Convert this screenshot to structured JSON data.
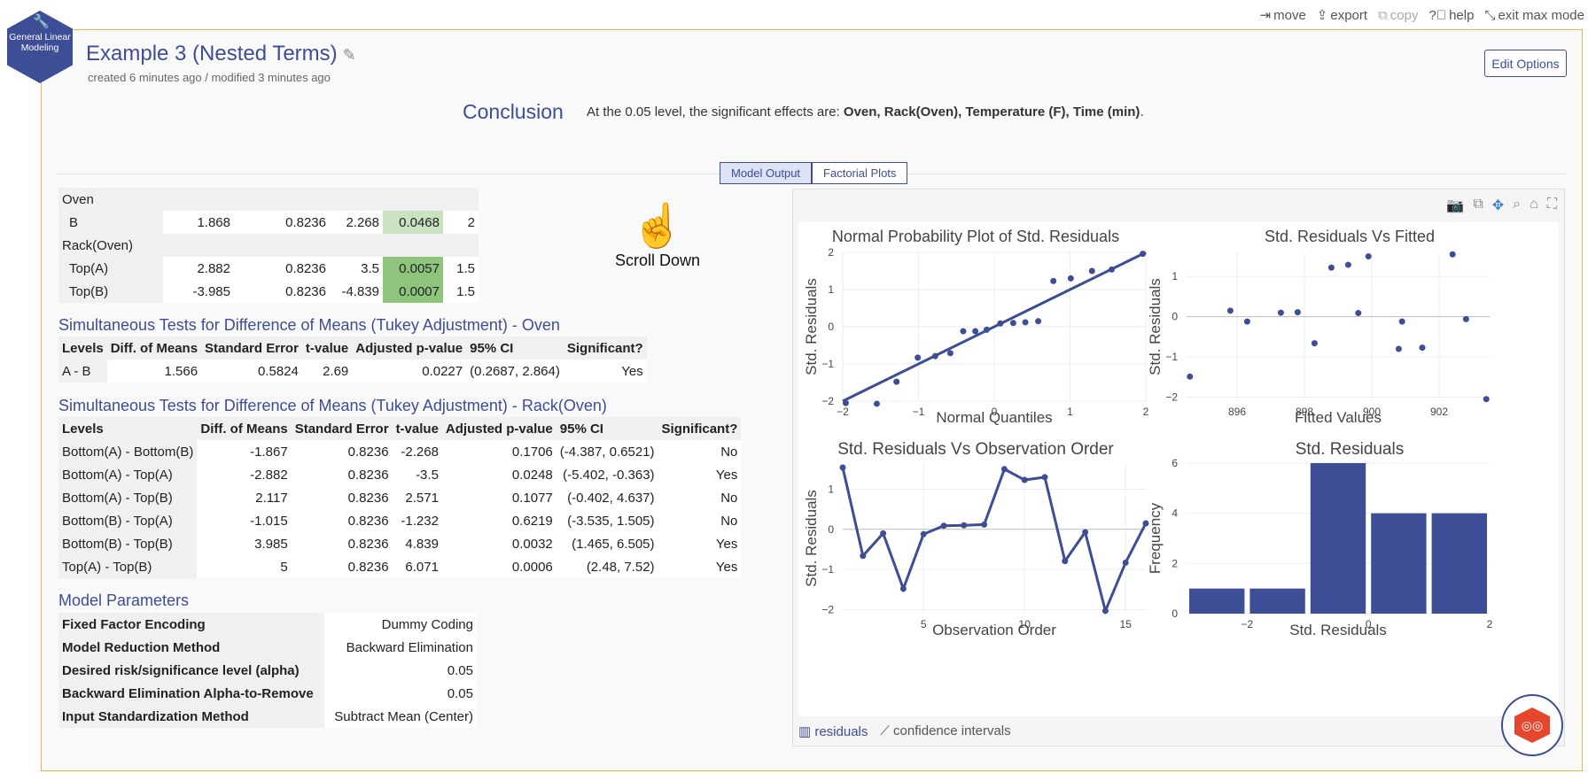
{
  "toolbar": {
    "move": "move",
    "export": "export",
    "copy": "copy",
    "help": "help",
    "exit": "exit max mode"
  },
  "app": {
    "logo_text": "General Linear Modeling",
    "title": "Example 3 (Nested Terms)",
    "subtitle": "created 6 minutes ago / modified 3 minutes ago",
    "edit_options": "Edit Options"
  },
  "conclusion": {
    "heading": "Conclusion",
    "text_prefix": "At the 0.05 level, the significant effects are: ",
    "effects": "Oven, Rack(Oven), Temperature (F), Time (min)",
    "text_suffix": "."
  },
  "tabs": {
    "model_output": "Model Output",
    "factorial_plots": "Factorial Plots"
  },
  "coef_table": {
    "rows": [
      {
        "term": "Oven",
        "cells": [
          "",
          "",
          "",
          "",
          ""
        ]
      },
      {
        "term": "B",
        "cells": [
          "1.868",
          "0.8236",
          "2.268",
          "0.0468",
          "2"
        ]
      },
      {
        "term": "Rack(Oven)",
        "cells": [
          "",
          "",
          "",
          "",
          ""
        ]
      },
      {
        "term": "Top(A)",
        "cells": [
          "2.882",
          "0.8236",
          "3.5",
          "0.0057",
          "1.5"
        ]
      },
      {
        "term": "Top(B)",
        "cells": [
          "-3.985",
          "0.8236",
          "-4.839",
          "0.0007",
          "1.5"
        ]
      }
    ]
  },
  "scroll_hint": "Scroll Down",
  "tukey_oven": {
    "title": "Simultaneous Tests for Difference of Means (Tukey Adjustment) - Oven",
    "headers": [
      "Levels",
      "Diff. of Means",
      "Standard Error",
      "t-value",
      "Adjusted p-value",
      "95% CI",
      "Significant?"
    ],
    "rows": [
      [
        "A - B",
        "1.566",
        "0.5824",
        "2.69",
        "0.0227",
        "(0.2687, 2.864)",
        "Yes"
      ]
    ]
  },
  "tukey_rack": {
    "title": "Simultaneous Tests for Difference of Means (Tukey Adjustment) - Rack(Oven)",
    "headers": [
      "Levels",
      "Diff. of Means",
      "Standard Error",
      "t-value",
      "Adjusted p-value",
      "95% CI",
      "Significant?"
    ],
    "rows": [
      [
        "Bottom(A) - Bottom(B)",
        "-1.867",
        "0.8236",
        "-2.268",
        "0.1706",
        "(-4.387, 0.6521)",
        "No"
      ],
      [
        "Bottom(A) - Top(A)",
        "-2.882",
        "0.8236",
        "-3.5",
        "0.0248",
        "(-5.402, -0.363)",
        "Yes"
      ],
      [
        "Bottom(A) - Top(B)",
        "2.117",
        "0.8236",
        "2.571",
        "0.1077",
        "(-0.402, 4.637)",
        "No"
      ],
      [
        "Bottom(B) - Top(A)",
        "-1.015",
        "0.8236",
        "-1.232",
        "0.6219",
        "(-3.535, 1.505)",
        "No"
      ],
      [
        "Bottom(B) - Top(B)",
        "3.985",
        "0.8236",
        "4.839",
        "0.0032",
        "(1.465, 6.505)",
        "Yes"
      ],
      [
        "Top(A) - Top(B)",
        "5",
        "0.8236",
        "6.071",
        "0.0006",
        "(2.48, 7.52)",
        "Yes"
      ]
    ]
  },
  "model_params": {
    "title": "Model Parameters",
    "rows": [
      [
        "Fixed Factor Encoding",
        "Dummy Coding"
      ],
      [
        "Model Reduction Method",
        "Backward Elimination"
      ],
      [
        "Desired risk/significance level (alpha)",
        "0.05"
      ],
      [
        "Backward Elimination Alpha-to-Remove",
        "0.05"
      ],
      [
        "Input Standardization Method",
        "Subtract Mean (Center)"
      ]
    ]
  },
  "plot_tabs": {
    "residuals": "residuals",
    "confidence": "confidence intervals"
  },
  "colors": {
    "accent": "#3d4d96",
    "green": "#8fc47c"
  },
  "chart_data": [
    {
      "type": "scatter",
      "title": "Normal Probability Plot of Std. Residuals",
      "xlabel": "Normal Quantiles",
      "ylabel": "Std. Residuals",
      "xlim": [
        -2,
        2
      ],
      "ylim": [
        -2,
        2
      ],
      "x": [
        -1.96,
        -1.55,
        -1.29,
        -1.01,
        -0.78,
        -0.58,
        -0.41,
        -0.25,
        -0.1,
        0.08,
        0.25,
        0.41,
        0.58,
        0.78,
        1.01,
        1.29,
        1.55,
        1.96
      ],
      "y": [
        -2.05,
        -2.07,
        -1.48,
        -0.83,
        -0.79,
        -0.71,
        -0.12,
        -0.12,
        -0.08,
        0.09,
        0.1,
        0.12,
        0.15,
        1.23,
        1.3,
        1.5,
        1.54,
        1.96
      ],
      "fit_line": [
        [
          -2,
          -2
        ],
        [
          2,
          2
        ]
      ],
      "xticks": [
        "−2",
        "−1",
        "0",
        "1",
        "2"
      ],
      "yticks": [
        "2",
        "1",
        "0",
        "−1",
        "−2"
      ]
    },
    {
      "type": "scatter",
      "title": "Std. Residuals Vs Fitted",
      "xlabel": "Fitted Values",
      "ylabel": "Std. Residuals",
      "xlim": [
        894.5,
        903.5
      ],
      "ylim": [
        -2.1,
        1.6
      ],
      "x": [
        894.6,
        895.8,
        896.3,
        897.3,
        897.8,
        898.3,
        898.8,
        899.3,
        899.6,
        899.9,
        900.8,
        900.9,
        901.5,
        902.4,
        902.8,
        903.4
      ],
      "y": [
        -1.49,
        0.15,
        -0.12,
        0.1,
        0.11,
        -0.66,
        1.22,
        1.29,
        0.09,
        1.5,
        -0.8,
        -0.12,
        -0.77,
        1.55,
        -0.06,
        -2.05
      ],
      "xticks": [
        "896",
        "898",
        "900",
        "902"
      ],
      "yticks": [
        "1",
        "0",
        "−1",
        "−2"
      ]
    },
    {
      "type": "line",
      "title": "Std. Residuals Vs Observation Order",
      "xlabel": "Observation Order",
      "ylabel": "Std. Residuals",
      "xlim": [
        1,
        16
      ],
      "ylim": [
        -2.1,
        1.65
      ],
      "x": [
        1,
        2,
        3,
        4,
        5,
        6,
        7,
        8,
        9,
        10,
        11,
        12,
        13,
        14,
        15,
        16
      ],
      "y": [
        1.54,
        -0.66,
        -0.1,
        -1.48,
        -0.12,
        0.09,
        0.1,
        0.12,
        1.5,
        1.23,
        1.3,
        -0.79,
        -0.07,
        -2.03,
        -0.83,
        0.15
      ],
      "xticks": [
        "5",
        "10",
        "15"
      ],
      "yticks": [
        "1",
        "0",
        "−1",
        "−2"
      ]
    },
    {
      "type": "bar",
      "title": "Std. Residuals",
      "xlabel": "Std. Residuals",
      "ylabel": "Frequency",
      "ylim": [
        0,
        6
      ],
      "categories": [
        "-2.5",
        "-1.5",
        "-0.5",
        "0.5",
        "1.5"
      ],
      "values": [
        1,
        1,
        6,
        4,
        4
      ],
      "xticks": [
        "−2",
        "0",
        "2"
      ],
      "yticks": [
        "6",
        "4",
        "2",
        "0"
      ]
    }
  ]
}
